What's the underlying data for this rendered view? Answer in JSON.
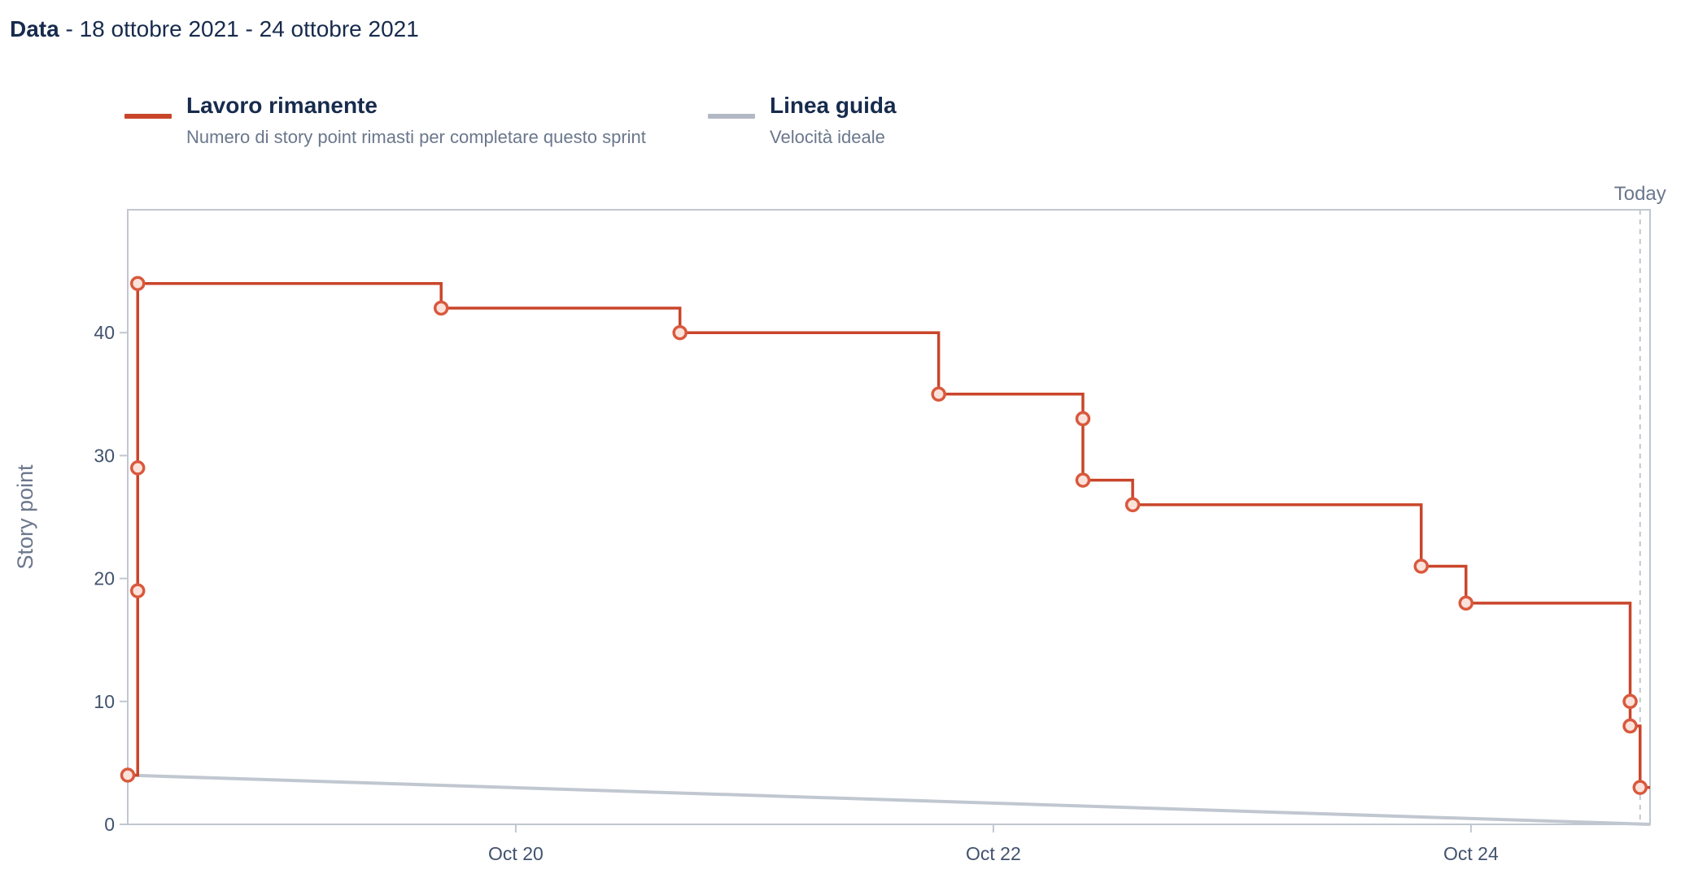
{
  "header": {
    "label": "Data",
    "range": " - 18 ottobre 2021 - 24 ottobre 2021"
  },
  "legend": [
    {
      "title": "Lavoro rimanente",
      "description": "Numero di story point rimasti per completare questo sprint",
      "color": "#c9452a"
    },
    {
      "title": "Linea guida",
      "description": "Velocità ideale",
      "color": "#b3b9c4"
    }
  ],
  "chart_data": {
    "type": "line",
    "ylabel": "Story point",
    "ylim": [
      0,
      50
    ],
    "yticks": [
      0,
      10,
      20,
      30,
      40
    ],
    "xlim": [
      "2021-10-18T09:00",
      "2021-10-24T18:00"
    ],
    "xticks": [
      {
        "label": "Oct 20",
        "value": "2021-10-20T00:00"
      },
      {
        "label": "Oct 22",
        "value": "2021-10-22T00:00"
      },
      {
        "label": "Oct 24",
        "value": "2021-10-24T00:00"
      }
    ],
    "today": {
      "label": "Today",
      "value": "2021-10-24T17:00"
    },
    "grid": false,
    "series": [
      {
        "name": "Lavoro rimanente",
        "color": "#c9452a",
        "step": true,
        "points": [
          {
            "x": "2021-10-18T09:00",
            "y": 4
          },
          {
            "x": "2021-10-18T10:00",
            "y": 19
          },
          {
            "x": "2021-10-18T10:00",
            "y": 29
          },
          {
            "x": "2021-10-18T10:00",
            "y": 44
          },
          {
            "x": "2021-10-19T16:30",
            "y": 42
          },
          {
            "x": "2021-10-20T16:30",
            "y": 40
          },
          {
            "x": "2021-10-21T18:30",
            "y": 35
          },
          {
            "x": "2021-10-22T09:00",
            "y": 33
          },
          {
            "x": "2021-10-22T09:00",
            "y": 28
          },
          {
            "x": "2021-10-22T14:00",
            "y": 26
          },
          {
            "x": "2021-10-23T19:00",
            "y": 21
          },
          {
            "x": "2021-10-23T23:30",
            "y": 18
          },
          {
            "x": "2021-10-24T16:00",
            "y": 10
          },
          {
            "x": "2021-10-24T16:00",
            "y": 8
          },
          {
            "x": "2021-10-24T17:00",
            "y": 3
          }
        ],
        "end": {
          "x": "2021-10-24T18:00",
          "y": 3
        }
      },
      {
        "name": "Linea guida",
        "color": "#c1c7d0",
        "points": [
          {
            "x": "2021-10-18T09:00",
            "y": 4
          },
          {
            "x": "2021-10-24T18:00",
            "y": 0
          }
        ]
      }
    ]
  }
}
